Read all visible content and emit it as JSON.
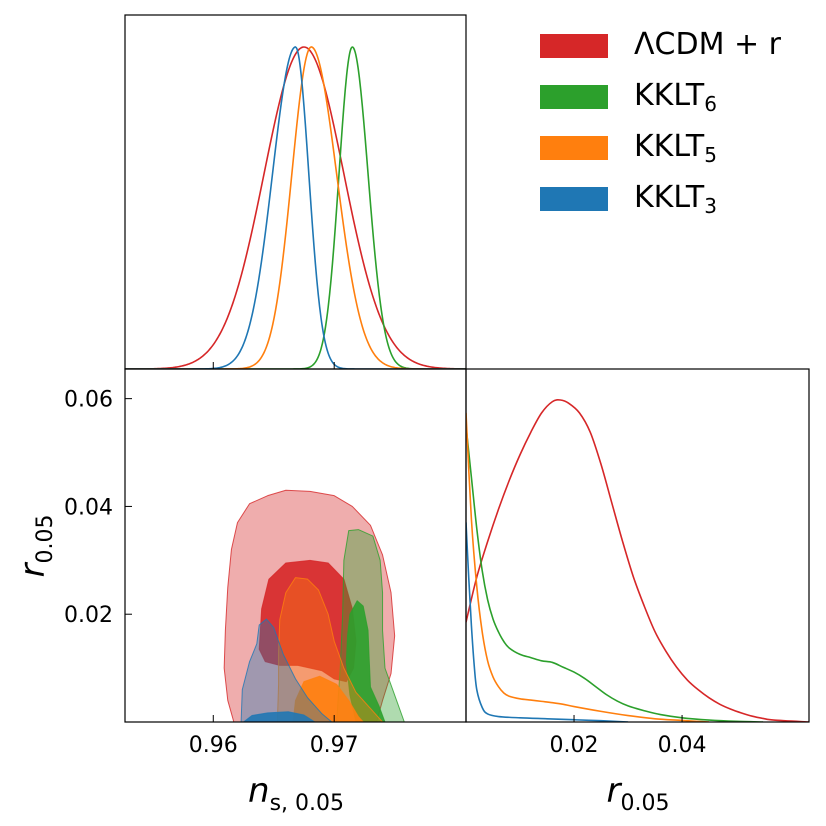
{
  "chart_data": {
    "type": "triangle",
    "colors": {
      "lcdm_r": "#d62728",
      "kklt6": "#2ca02c",
      "kklt5": "#ff7f0e",
      "kklt3": "#1f77b4"
    },
    "legend": {
      "placement": "top-right",
      "entries": [
        {
          "key": "lcdm_r",
          "label": "ΛCDM + r",
          "base": "ΛCDM + r",
          "sub": ""
        },
        {
          "key": "kklt6",
          "label": "KKLT6",
          "base": "KKLT",
          "sub": "6"
        },
        {
          "key": "kklt5",
          "label": "KKLT5",
          "base": "KKLT",
          "sub": "5"
        },
        {
          "key": "kklt3",
          "label": "KKLT3",
          "base": "KKLT",
          "sub": "3"
        }
      ]
    },
    "axes": {
      "ns": {
        "label": "n",
        "label_sub": "s, 0.05",
        "range": [
          0.9527,
          0.9809
        ],
        "ticks": [
          0.96,
          0.97
        ],
        "tick_labels": [
          "0.96",
          "0.97"
        ]
      },
      "r": {
        "label": "r",
        "label_sub": "0.05",
        "range": [
          0,
          0.0655
        ],
        "ticks": [
          0.02,
          0.04,
          0.06
        ],
        "tick_labels": [
          "0.02",
          "0.04",
          "0.06"
        ]
      },
      "r_hist": {
        "range": [
          0,
          0.0635
        ],
        "ticks": [
          0.02,
          0.04
        ],
        "tick_labels": [
          "0.02",
          "0.04"
        ]
      }
    },
    "marginal_ns": [
      {
        "key": "lcdm_r",
        "mean": 0.9675,
        "sigma_left": 0.0033,
        "sigma_right": 0.0033
      },
      {
        "key": "kklt6",
        "mean": 0.9715,
        "sigma_left": 0.0011,
        "sigma_right": 0.0013
      },
      {
        "key": "kklt5",
        "mean": 0.9681,
        "sigma_left": 0.0016,
        "sigma_right": 0.0021
      },
      {
        "key": "kklt3",
        "mean": 0.9668,
        "sigma_left": 0.0019,
        "sigma_right": 0.0011
      }
    ],
    "marginal_r": [
      {
        "key": "lcdm_r",
        "points": [
          [
            0,
            0.31
          ],
          [
            0.002,
            0.45
          ],
          [
            0.004,
            0.56
          ],
          [
            0.006,
            0.66
          ],
          [
            0.008,
            0.75
          ],
          [
            0.01,
            0.83
          ],
          [
            0.012,
            0.9
          ],
          [
            0.014,
            0.96
          ],
          [
            0.016,
            0.995
          ],
          [
            0.0175,
            1.0
          ],
          [
            0.019,
            0.99
          ],
          [
            0.021,
            0.96
          ],
          [
            0.023,
            0.9
          ],
          [
            0.025,
            0.8
          ],
          [
            0.027,
            0.68
          ],
          [
            0.029,
            0.56
          ],
          [
            0.031,
            0.45
          ],
          [
            0.033,
            0.36
          ],
          [
            0.035,
            0.28
          ],
          [
            0.037,
            0.22
          ],
          [
            0.039,
            0.17
          ],
          [
            0.041,
            0.13
          ],
          [
            0.043,
            0.1
          ],
          [
            0.045,
            0.075
          ],
          [
            0.047,
            0.055
          ],
          [
            0.049,
            0.04
          ],
          [
            0.051,
            0.028
          ],
          [
            0.053,
            0.018
          ],
          [
            0.055,
            0.011
          ],
          [
            0.057,
            0.006
          ],
          [
            0.0635,
            0.0
          ]
        ]
      },
      {
        "key": "kklt6",
        "points": [
          [
            0,
            0.92
          ],
          [
            0.001,
            0.76
          ],
          [
            0.002,
            0.6
          ],
          [
            0.003,
            0.47
          ],
          [
            0.004,
            0.38
          ],
          [
            0.005,
            0.32
          ],
          [
            0.006,
            0.28
          ],
          [
            0.007,
            0.25
          ],
          [
            0.008,
            0.23
          ],
          [
            0.01,
            0.21
          ],
          [
            0.012,
            0.2
          ],
          [
            0.014,
            0.19
          ],
          [
            0.016,
            0.185
          ],
          [
            0.018,
            0.17
          ],
          [
            0.02,
            0.155
          ],
          [
            0.022,
            0.135
          ],
          [
            0.024,
            0.11
          ],
          [
            0.026,
            0.085
          ],
          [
            0.028,
            0.065
          ],
          [
            0.03,
            0.05
          ],
          [
            0.033,
            0.035
          ],
          [
            0.036,
            0.023
          ],
          [
            0.04,
            0.013
          ],
          [
            0.045,
            0.006
          ],
          [
            0.05,
            0.002
          ],
          [
            0.055,
            0.0
          ]
        ]
      },
      {
        "key": "kklt5",
        "points": [
          [
            0,
            0.96
          ],
          [
            0.001,
            0.63
          ],
          [
            0.002,
            0.42
          ],
          [
            0.003,
            0.28
          ],
          [
            0.004,
            0.19
          ],
          [
            0.005,
            0.14
          ],
          [
            0.006,
            0.11
          ],
          [
            0.007,
            0.09
          ],
          [
            0.008,
            0.08
          ],
          [
            0.01,
            0.072
          ],
          [
            0.012,
            0.068
          ],
          [
            0.014,
            0.064
          ],
          [
            0.016,
            0.06
          ],
          [
            0.018,
            0.055
          ],
          [
            0.02,
            0.048
          ],
          [
            0.025,
            0.033
          ],
          [
            0.03,
            0.02
          ],
          [
            0.035,
            0.01
          ],
          [
            0.04,
            0.005
          ],
          [
            0.045,
            0.0
          ]
        ]
      },
      {
        "key": "kklt3",
        "points": [
          [
            0,
            0.62
          ],
          [
            0.0005,
            0.45
          ],
          [
            0.001,
            0.3
          ],
          [
            0.0015,
            0.18
          ],
          [
            0.002,
            0.1
          ],
          [
            0.003,
            0.045
          ],
          [
            0.004,
            0.025
          ],
          [
            0.006,
            0.017
          ],
          [
            0.01,
            0.013
          ],
          [
            0.015,
            0.01
          ],
          [
            0.02,
            0.007
          ],
          [
            0.025,
            0.004
          ],
          [
            0.03,
            0.0
          ]
        ]
      }
    ],
    "contours": [
      {
        "key": "lcdm_r",
        "level": "95%",
        "points": [
          [
            0.9617,
            0
          ],
          [
            0.9612,
            0.004
          ],
          [
            0.9609,
            0.01
          ],
          [
            0.961,
            0.017
          ],
          [
            0.9612,
            0.025
          ],
          [
            0.9615,
            0.032
          ],
          [
            0.962,
            0.037
          ],
          [
            0.963,
            0.0405
          ],
          [
            0.9645,
            0.042
          ],
          [
            0.966,
            0.043
          ],
          [
            0.968,
            0.0428
          ],
          [
            0.97,
            0.042
          ],
          [
            0.9715,
            0.04
          ],
          [
            0.973,
            0.0365
          ],
          [
            0.974,
            0.031
          ],
          [
            0.9747,
            0.024
          ],
          [
            0.975,
            0.016
          ],
          [
            0.9747,
            0.009
          ],
          [
            0.974,
            0.004
          ],
          [
            0.9735,
            0
          ]
        ]
      },
      {
        "key": "lcdm_r",
        "level": "68%",
        "points": [
          [
            0.9638,
            0.0135
          ],
          [
            0.964,
            0.021
          ],
          [
            0.9646,
            0.0265
          ],
          [
            0.966,
            0.0295
          ],
          [
            0.968,
            0.03
          ],
          [
            0.9695,
            0.0295
          ],
          [
            0.9708,
            0.0265
          ],
          [
            0.9715,
            0.021
          ],
          [
            0.9718,
            0.015
          ],
          [
            0.9716,
            0.01
          ],
          [
            0.971,
            0.0075
          ],
          [
            0.97,
            0.008
          ],
          [
            0.969,
            0.0095
          ],
          [
            0.967,
            0.0105
          ],
          [
            0.9655,
            0.0105
          ],
          [
            0.9643,
            0.0112
          ]
        ]
      },
      {
        "key": "kklt6",
        "level": "95%",
        "points": [
          [
            0.9702,
            0
          ],
          [
            0.9705,
            0.01
          ],
          [
            0.9707,
            0.02
          ],
          [
            0.9708,
            0.03
          ],
          [
            0.9712,
            0.0355
          ],
          [
            0.972,
            0.0357
          ],
          [
            0.9732,
            0.0345
          ],
          [
            0.9738,
            0.03
          ],
          [
            0.974,
            0.024
          ],
          [
            0.974,
            0.017
          ],
          [
            0.9742,
            0.01
          ],
          [
            0.975,
            0.005
          ],
          [
            0.9758,
            0
          ]
        ]
      },
      {
        "key": "kklt6",
        "level": "68%",
        "points": [
          [
            0.9718,
            0
          ],
          [
            0.9713,
            0.005
          ],
          [
            0.971,
            0.011
          ],
          [
            0.9711,
            0.016
          ],
          [
            0.9713,
            0.02
          ],
          [
            0.9719,
            0.0225
          ],
          [
            0.9724,
            0.0215
          ],
          [
            0.9728,
            0.017
          ],
          [
            0.9729,
            0.0115
          ],
          [
            0.973,
            0.0065
          ],
          [
            0.9737,
            0.003
          ],
          [
            0.9742,
            0
          ]
        ]
      },
      {
        "key": "kklt5",
        "level": "95%",
        "points": [
          [
            0.9653,
            0
          ],
          [
            0.9654,
            0.007
          ],
          [
            0.9654,
            0.013
          ],
          [
            0.9655,
            0.019
          ],
          [
            0.966,
            0.024
          ],
          [
            0.9668,
            0.0268
          ],
          [
            0.9678,
            0.0265
          ],
          [
            0.9687,
            0.0245
          ],
          [
            0.9695,
            0.02
          ],
          [
            0.97,
            0.015
          ],
          [
            0.9708,
            0.01
          ],
          [
            0.9718,
            0.0055
          ],
          [
            0.9732,
            0.002
          ],
          [
            0.974,
            0
          ]
        ]
      },
      {
        "key": "kklt5",
        "level": "68%",
        "points": [
          [
            0.9666,
            0
          ],
          [
            0.9668,
            0.004
          ],
          [
            0.9675,
            0.0075
          ],
          [
            0.9688,
            0.0085
          ],
          [
            0.9702,
            0.007
          ],
          [
            0.9712,
            0.004
          ],
          [
            0.972,
            0.001
          ],
          [
            0.9724,
            0
          ]
        ]
      },
      {
        "key": "kklt3",
        "level": "95%",
        "points": [
          [
            0.9623,
            0
          ],
          [
            0.9624,
            0.006
          ],
          [
            0.963,
            0.0112
          ],
          [
            0.9636,
            0.0145
          ],
          [
            0.9638,
            0.018
          ],
          [
            0.9644,
            0.0191
          ],
          [
            0.965,
            0.0175
          ],
          [
            0.9658,
            0.0125
          ],
          [
            0.9668,
            0.008
          ],
          [
            0.9678,
            0.0045
          ],
          [
            0.969,
            0.0015
          ],
          [
            0.9698,
            0
          ]
        ]
      },
      {
        "key": "kklt3",
        "level": "68%",
        "points": [
          [
            0.9625,
            0
          ],
          [
            0.9632,
            0.0012
          ],
          [
            0.9645,
            0.0017
          ],
          [
            0.9662,
            0.0019
          ],
          [
            0.9675,
            0.0013
          ],
          [
            0.9684,
            0
          ]
        ]
      }
    ]
  }
}
